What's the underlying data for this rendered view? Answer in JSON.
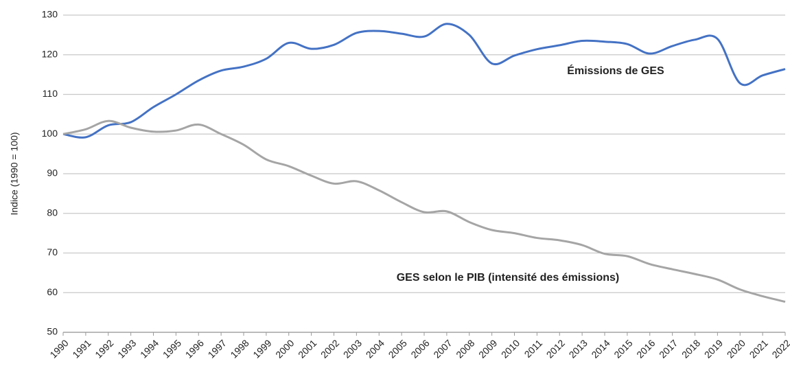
{
  "chart_data": {
    "type": "line",
    "y_axis_label": "Indice (1990 = 100)",
    "categories": [
      "1990",
      "1991",
      "1992",
      "1993",
      "1994",
      "1995",
      "1996",
      "1997",
      "1998",
      "1999",
      "2000",
      "2001",
      "2002",
      "2003",
      "2004",
      "2005",
      "2006",
      "2007",
      "2008",
      "2009",
      "2010",
      "2011",
      "2012",
      "2013",
      "2014",
      "2015",
      "2016",
      "2017",
      "2018",
      "2019",
      "2020",
      "2021",
      "2022"
    ],
    "series": [
      {
        "name": "Émissions de GES",
        "color": "#4472c4",
        "values": [
          100,
          99.2,
          102.2,
          103,
          106.8,
          110,
          113.5,
          116,
          117,
          119,
          123,
          121.5,
          122.5,
          125.5,
          126,
          125.3,
          124.6,
          127.8,
          125,
          117.8,
          119.8,
          121.4,
          122.4,
          123.5,
          123.3,
          122.7,
          120.3,
          122.2,
          123.8,
          124,
          112.8,
          114.8,
          116.4
        ]
      },
      {
        "name": "GES selon le PIB (intensité des émissions)",
        "color": "#a5a5a5",
        "values": [
          100,
          101.2,
          103.3,
          101.6,
          100.6,
          100.9,
          102.4,
          100,
          97.3,
          93.6,
          91.9,
          89.5,
          87.5,
          88.1,
          85.8,
          82.8,
          80.3,
          80.5,
          77.8,
          75.8,
          75,
          73.8,
          73.2,
          72,
          69.8,
          69.2,
          67.2,
          65.9,
          64.7,
          63.3,
          60.8,
          59.1,
          57.7
        ]
      }
    ],
    "ylim": [
      50,
      130
    ],
    "yticks": [
      50,
      60,
      70,
      80,
      90,
      100,
      110,
      120,
      130
    ],
    "grid": true
  }
}
